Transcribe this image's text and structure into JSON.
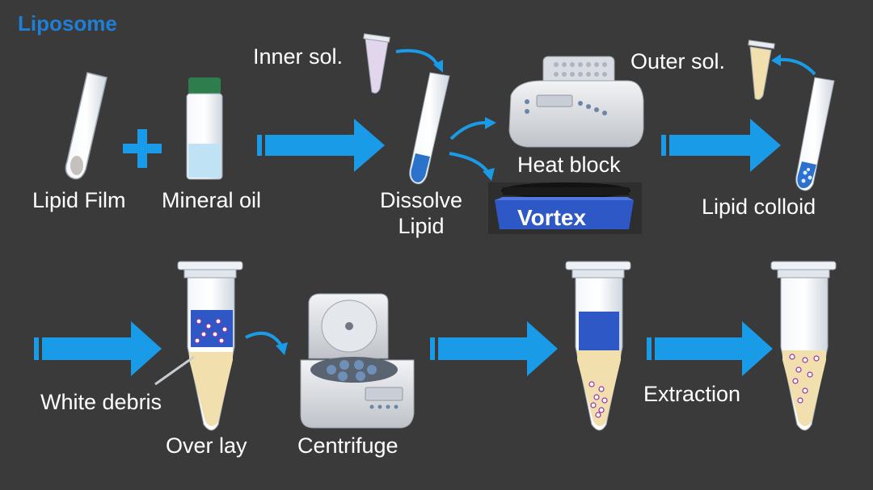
{
  "title": "Liposome",
  "colors": {
    "background": "#3a3a3a",
    "title": "#1f7fd6",
    "arrow": "#1a9be8",
    "blue_fill": "#2a72cc",
    "pale_yellow": "#f1dfae",
    "lilac": "#c9b6d6",
    "pink_dots": "#9c2fa4"
  },
  "labels": {
    "lipid_film": "Lipid Film",
    "mineral_oil": "Mineral oil",
    "inner_sol": "Inner sol.",
    "dissolve_line1": "Dissolve",
    "dissolve_line2": "Lipid",
    "heat_block": "Heat block",
    "vortex": "Vortex",
    "outer_sol": "Outer sol.",
    "lipid_colloid": "Lipid colloid",
    "white_debris": "White debris",
    "over_lay": "Over lay",
    "centrifuge": "Centrifuge",
    "extraction": "Extraction"
  }
}
